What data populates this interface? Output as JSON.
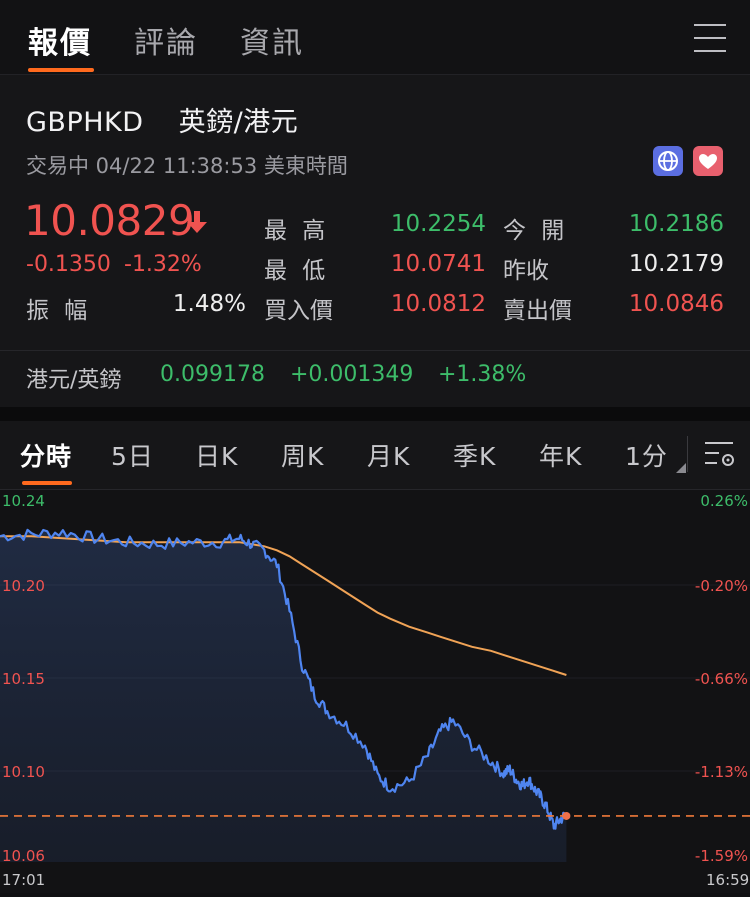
{
  "tabs": [
    "報價",
    "評論",
    "資訊"
  ],
  "quote": {
    "symbol": "GBPHKD",
    "name": "英鎊/港元",
    "status": "交易中 04/22 11:38:53 美東時間",
    "price": "10.0829",
    "change": "-0.1350",
    "change_pct": "-1.32%",
    "amplitude_label": "振 幅",
    "amplitude": "1.48%",
    "high_label": "最 高",
    "high": "10.2254",
    "low_label": "最 低",
    "low": "10.0741",
    "bid_label": "買入價",
    "bid": "10.0812",
    "open_label": "今 開",
    "open": "10.2186",
    "prev_close_label": "昨收",
    "prev_close": "10.2179",
    "ask_label": "賣出價",
    "ask": "10.0846",
    "accent_down": "#f05350",
    "accent_up": "#3dbd6a"
  },
  "cross": {
    "label": "港元/英鎊",
    "price": "0.099178",
    "change": "+0.001349",
    "change_pct": "+1.38%"
  },
  "chart_tabs": [
    "分時",
    "5日",
    "日K",
    "周K",
    "月K",
    "季K",
    "年K",
    "1分"
  ],
  "chart": {
    "y_left": [
      "10.24",
      "10.20",
      "10.15",
      "10.10",
      "10.06"
    ],
    "y_right": [
      "0.26%",
      "-0.20%",
      "-0.66%",
      "-1.13%",
      "-1.59%"
    ],
    "x_start": "17:01",
    "x_end": "16:59"
  },
  "chart_data": {
    "type": "line",
    "ylim": [
      10.06,
      10.24
    ],
    "reference_price": 10.0829,
    "x": [
      0,
      5,
      10,
      15,
      20,
      25,
      30,
      35,
      38,
      40,
      42,
      44,
      46,
      48,
      50,
      52,
      55,
      58,
      60,
      62,
      65,
      68,
      70,
      72,
      75,
      78,
      80,
      81,
      82,
      83,
      84,
      85,
      86,
      87,
      88,
      89,
      90
    ],
    "series": [
      {
        "values": [
          10.222,
          10.223,
          10.224,
          10.221,
          10.219,
          10.218,
          10.219,
          10.219,
          10.221,
          10.218,
          10.215,
          10.208,
          10.185,
          10.158,
          10.143,
          10.135,
          10.128,
          10.118,
          10.103,
          10.097,
          10.1,
          10.113,
          10.125,
          10.13,
          10.118,
          10.11,
          10.104,
          10.106,
          10.101,
          10.098,
          10.101,
          10.096,
          10.092,
          10.086,
          10.078,
          10.081,
          10.084
        ]
      },
      {
        "values": [
          10.222,
          10.222,
          10.221,
          10.22,
          10.219,
          10.219,
          10.219,
          10.219,
          10.219,
          10.218,
          10.217,
          10.215,
          10.212,
          10.208,
          10.204,
          10.2,
          10.194,
          10.188,
          10.184,
          10.181,
          10.177,
          10.174,
          10.172,
          10.17,
          10.167,
          10.165,
          10.163,
          10.162,
          10.161,
          10.16,
          10.159,
          10.158,
          10.157,
          10.156,
          10.155,
          10.154,
          10.153
        ]
      }
    ]
  }
}
